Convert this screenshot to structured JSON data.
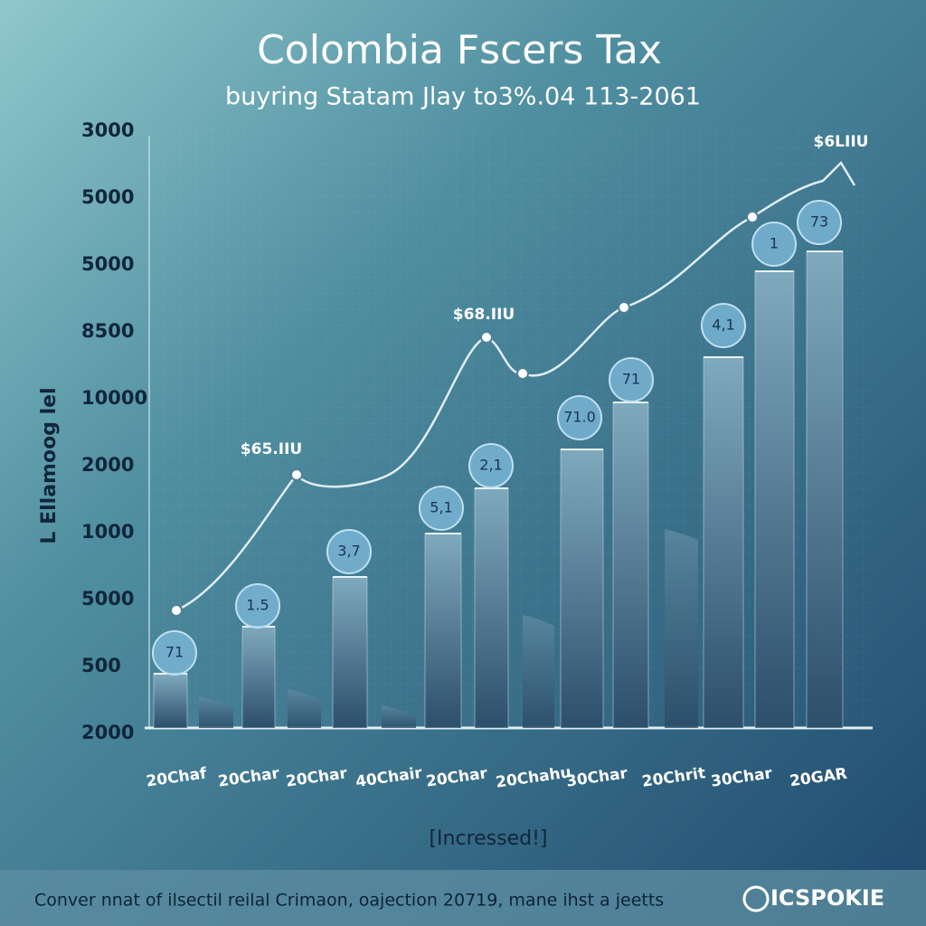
{
  "chart_data": {
    "type": "bar",
    "title": "Colombia Fscers Tax",
    "subtitle": "buyring Statam Jlay to3%.04 113-2061",
    "y_axis_title": "L Ellamoog lel",
    "x_axis_title": "[Incressed!]",
    "y_axis_labels": [
      "3000",
      "5000",
      "5000",
      "8500",
      "10000",
      "2000",
      "1000",
      "5000",
      "500",
      "2000"
    ],
    "categories": [
      "20Chaf",
      "20Char",
      "20Char",
      "40Chair",
      "20Char",
      "20Chahu",
      "30Char",
      "20Chrit",
      "30Char",
      "20GAR"
    ],
    "bar_labels": [
      "71",
      "1.5",
      "3,7",
      "5,1",
      "2,1",
      "71.0",
      "71",
      "4,1",
      "1",
      "73"
    ],
    "line_labels": [
      "$65.IIU",
      "$68.IIU",
      "$6LIIU"
    ],
    "footer": "Conver nnat of ilsectil reilal Crimaon, oajection 20719, mane ihst a jeetts",
    "logo": "ICSPOKIE"
  }
}
